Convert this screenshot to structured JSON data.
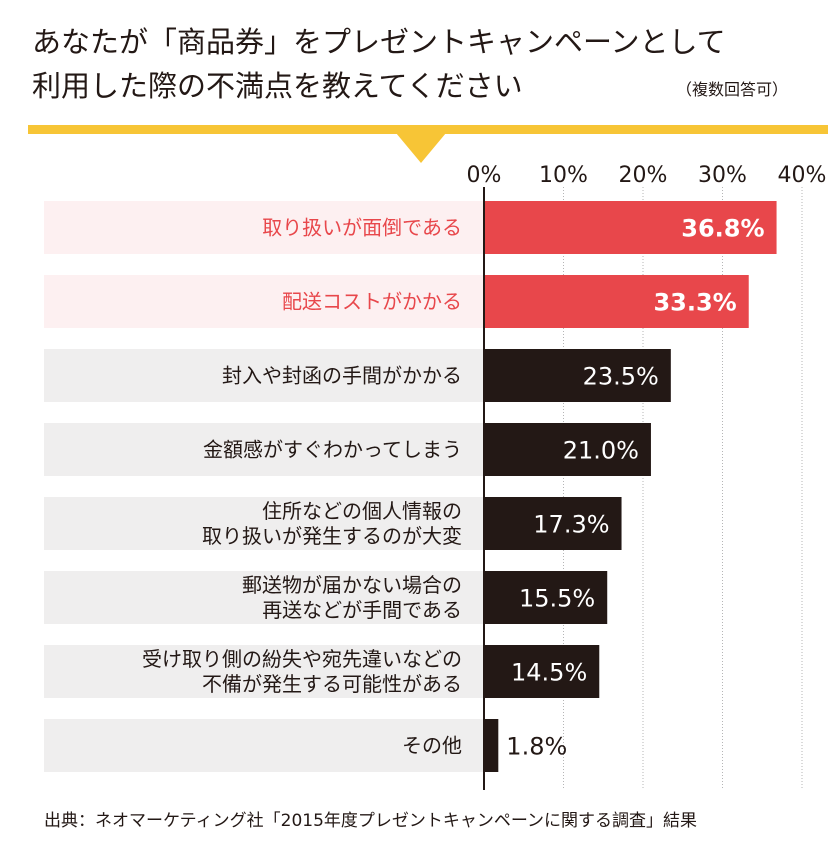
{
  "title_lines": [
    "あなたが「商品券」をプレゼントキャンペーンとして",
    "利用した際の不満点を教えてください"
  ],
  "note": "（複数回答可）",
  "source": "出典：ネオマーケティング社「2015年度プレゼントキャンペーンに関する調査」結果",
  "colors": {
    "accent": "#f7c536",
    "highlight_bar": "#e8474b",
    "highlight_bg": "#fdf0f1",
    "highlight_text": "#e8474b",
    "normal_bar": "#231815",
    "normal_bg": "#efeeee",
    "normal_text": "#231815"
  },
  "chart_data": {
    "type": "bar",
    "orientation": "horizontal",
    "xlim": [
      0,
      40
    ],
    "ticks": [
      "0%",
      "10%",
      "20%",
      "30%",
      "40%"
    ],
    "tick_values": [
      0,
      10,
      20,
      30,
      40
    ],
    "grid": true,
    "categories": [
      [
        "取り扱いが面倒である"
      ],
      [
        "配送コストがかかる"
      ],
      [
        "封入や封函の手間がかかる"
      ],
      [
        "金額感がすぐわかってしまう"
      ],
      [
        "住所などの個人情報の",
        "取り扱いが発生するのが大変"
      ],
      [
        "郵送物が届かない場合の",
        "再送などが手間である"
      ],
      [
        "受け取り側の紛失や宛先違いなどの",
        "不備が発生する可能性がある"
      ],
      [
        "その他"
      ]
    ],
    "values": [
      36.8,
      33.3,
      23.5,
      21.0,
      17.3,
      15.5,
      14.5,
      1.8
    ],
    "value_labels": [
      "36.8%",
      "33.3%",
      "23.5%",
      "21.0%",
      "17.3%",
      "15.5%",
      "14.5%",
      "1.8%"
    ],
    "highlighted": [
      true,
      true,
      false,
      false,
      false,
      false,
      false,
      false
    ]
  }
}
